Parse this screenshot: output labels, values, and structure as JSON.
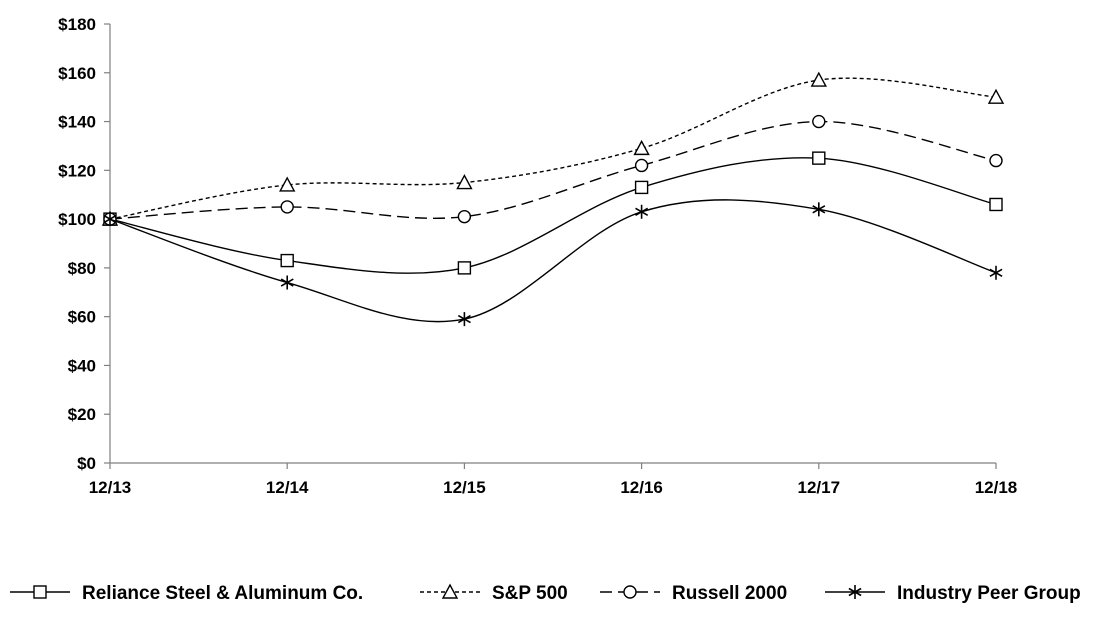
{
  "chart_data": {
    "type": "line",
    "categories": [
      "12/13",
      "12/14",
      "12/15",
      "12/16",
      "12/17",
      "12/18"
    ],
    "ylim": [
      0,
      180
    ],
    "yticks": [
      0,
      20,
      40,
      60,
      80,
      100,
      120,
      140,
      160,
      180
    ],
    "ytick_labels": [
      "$0",
      "$20",
      "$40",
      "$60",
      "$80",
      "$100",
      "$120",
      "$140",
      "$160",
      "$180"
    ],
    "grid": false,
    "legend_position": "bottom",
    "series": [
      {
        "name": "Reliance Steel & Aluminum Co.",
        "marker": "square",
        "dash": "solid",
        "values": [
          100,
          83,
          80,
          113,
          125,
          106
        ]
      },
      {
        "name": "S&P 500",
        "marker": "triangle",
        "dash": "dotted",
        "values": [
          100,
          114,
          115,
          129,
          157,
          150
        ]
      },
      {
        "name": "Russell 2000",
        "marker": "circle",
        "dash": "dashed",
        "values": [
          100,
          105,
          101,
          122,
          140,
          124
        ]
      },
      {
        "name": "Industry Peer Group",
        "marker": "asterisk",
        "dash": "solid",
        "values": [
          100,
          74,
          59,
          103,
          104,
          78
        ]
      }
    ]
  }
}
